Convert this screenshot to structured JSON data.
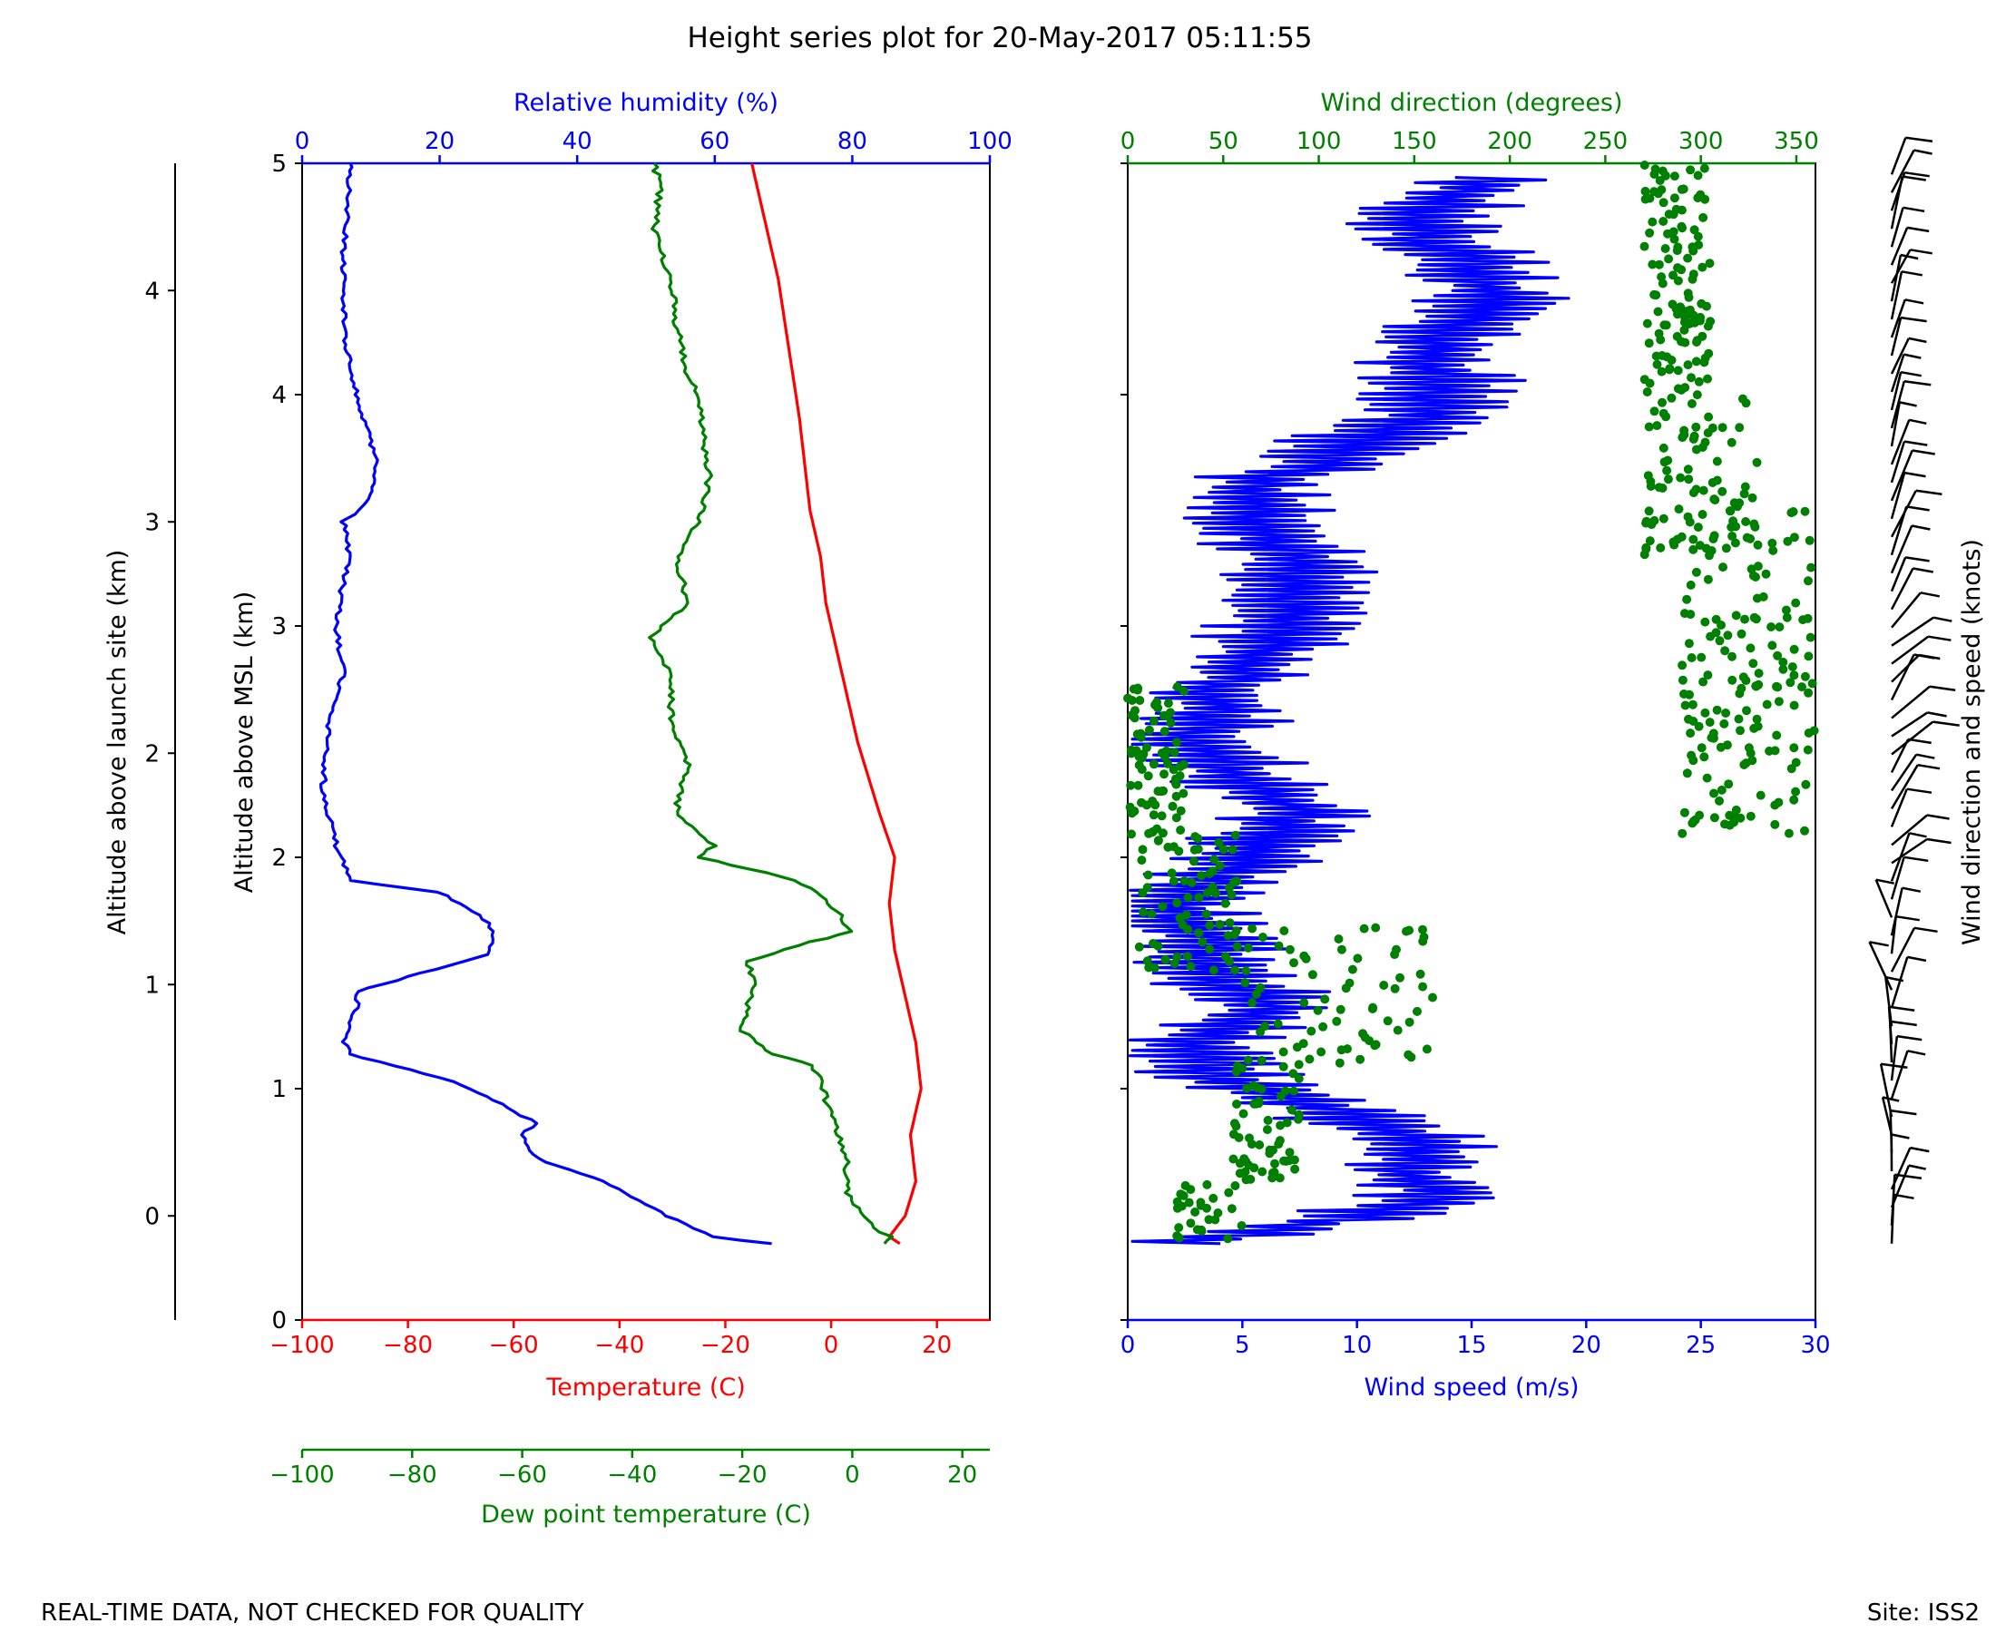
{
  "title": "Height series plot for 20-May-2017 05:11:55",
  "footer": {
    "left_note": "REAL-TIME DATA, NOT CHECKED FOR QUALITY",
    "site": "Site: ISS2"
  },
  "colors": {
    "temperature": "#ff0000",
    "humidity": "#0000ff",
    "dewpoint": "#008000",
    "wind_speed": "#0000ff",
    "wind_direction": "#008000",
    "barbs": "#000000",
    "axis": "#000000"
  },
  "chart_data": [
    {
      "type": "line",
      "panel": "thermo",
      "ylabel_msl": "Altitude above MSL (km)",
      "ylim_msl": [
        0,
        5
      ],
      "yticks_msl": [
        "0",
        "1",
        "2",
        "3",
        "4",
        "5"
      ],
      "ylabel_launch": "Altitude above launch site (km)",
      "ylim_launch": [
        -0.45,
        4.55
      ],
      "yticks_launch": [
        "0",
        "1",
        "2",
        "3",
        "4"
      ],
      "axes": {
        "temperature": {
          "label": "Temperature (C)",
          "range": [
            -100,
            30
          ],
          "ticks": [
            "−100",
            "−80",
            "−60",
            "−40",
            "−20",
            "0",
            "20"
          ]
        },
        "dewpoint": {
          "label": "Dew point temperature (C)",
          "range": [
            -100,
            25
          ],
          "ticks": [
            "−100",
            "−80",
            "−60",
            "−40",
            "−20",
            "0",
            "20"
          ]
        },
        "humidity": {
          "label": "Relative humidity (%)",
          "range": [
            0,
            100
          ],
          "ticks": [
            "0",
            "20",
            "40",
            "60",
            "80",
            "100"
          ]
        }
      },
      "series": [
        {
          "name": "Temperature",
          "axis": "temperature",
          "points": [
            [
              13,
              0.33
            ],
            [
              11,
              0.36
            ],
            [
              14,
              0.45
            ],
            [
              16,
              0.6
            ],
            [
              15,
              0.8
            ],
            [
              17,
              1.0
            ],
            [
              16,
              1.2
            ],
            [
              14,
              1.4
            ],
            [
              12,
              1.6
            ],
            [
              11,
              1.8
            ],
            [
              12,
              2.0
            ],
            [
              9,
              2.2
            ],
            [
              5,
              2.5
            ],
            [
              2,
              2.8
            ],
            [
              -1,
              3.1
            ],
            [
              -2,
              3.3
            ],
            [
              -4,
              3.5
            ],
            [
              -5,
              3.7
            ],
            [
              -6,
              3.9
            ],
            [
              -8,
              4.2
            ],
            [
              -10,
              4.5
            ],
            [
              -13,
              4.8
            ],
            [
              -15,
              5.0
            ]
          ]
        },
        {
          "name": "Dew point",
          "axis": "dewpoint",
          "points": [
            [
              6,
              0.33
            ],
            [
              7,
              0.36
            ],
            [
              4,
              0.4
            ],
            [
              -1,
              0.55
            ],
            [
              -1,
              0.7
            ],
            [
              -4,
              0.9
            ],
            [
              -7,
              1.1
            ],
            [
              -15,
              1.15
            ],
            [
              -20,
              1.25
            ],
            [
              -18,
              1.45
            ],
            [
              -19,
              1.55
            ],
            [
              -10,
              1.62
            ],
            [
              0,
              1.68
            ],
            [
              -4,
              1.8
            ],
            [
              -10,
              1.9
            ],
            [
              -28,
              2.0
            ],
            [
              -25,
              2.05
            ],
            [
              -32,
              2.2
            ],
            [
              -30,
              2.4
            ],
            [
              -33,
              2.6
            ],
            [
              -33,
              2.8
            ],
            [
              -37,
              2.95
            ],
            [
              -30,
              3.1
            ],
            [
              -32,
              3.3
            ],
            [
              -27,
              3.5
            ],
            [
              -26,
              3.65
            ],
            [
              -27,
              3.8
            ],
            [
              -28,
              4.0
            ],
            [
              -30,
              4.1
            ],
            [
              -32,
              4.3
            ],
            [
              -33,
              4.5
            ],
            [
              -36,
              4.7
            ],
            [
              -35,
              4.9
            ],
            [
              -36,
              5.0
            ]
          ]
        },
        {
          "name": "Relative humidity",
          "axis": "humidity",
          "points": [
            [
              68,
              0.33
            ],
            [
              60,
              0.36
            ],
            [
              53,
              0.45
            ],
            [
              44,
              0.6
            ],
            [
              34,
              0.7
            ],
            [
              32,
              0.8
            ],
            [
              34,
              0.85
            ],
            [
              28,
              0.95
            ],
            [
              22,
              1.03
            ],
            [
              7,
              1.15
            ],
            [
              6,
              1.22
            ],
            [
              8,
              1.35
            ],
            [
              8,
              1.42
            ],
            [
              27,
              1.58
            ],
            [
              28,
              1.68
            ],
            [
              26,
              1.75
            ],
            [
              20,
              1.85
            ],
            [
              7,
              1.9
            ],
            [
              5,
              2.05
            ],
            [
              3,
              2.3
            ],
            [
              4,
              2.6
            ],
            [
              6,
              2.8
            ],
            [
              5,
              3.0
            ],
            [
              6,
              3.2
            ],
            [
              7,
              3.3
            ],
            [
              6,
              3.45
            ],
            [
              10,
              3.55
            ],
            [
              11,
              3.7
            ],
            [
              9,
              3.9
            ],
            [
              7,
              4.1
            ],
            [
              6,
              4.3
            ],
            [
              6,
              4.6
            ],
            [
              7,
              5.0
            ]
          ]
        }
      ]
    },
    {
      "type": "scatter",
      "panel": "wind",
      "ylim_msl": [
        0,
        5
      ],
      "axes": {
        "wind_speed": {
          "label": "Wind speed (m/s)",
          "range": [
            0,
            30
          ],
          "ticks": [
            "0",
            "5",
            "10",
            "15",
            "20",
            "25",
            "30"
          ]
        },
        "wind_direction": {
          "label": "Wind direction (degrees)",
          "range": [
            0,
            360
          ],
          "ticks": [
            "0",
            "50",
            "100",
            "150",
            "200",
            "250",
            "300",
            "350"
          ]
        }
      },
      "series": [
        {
          "name": "Wind speed",
          "type": "line",
          "axis": "wind_speed",
          "points": [
            [
              1,
              0.33
            ],
            [
              4,
              0.36
            ],
            [
              10,
              0.45
            ],
            [
              14,
              0.55
            ],
            [
              12,
              0.65
            ],
            [
              13,
              0.75
            ],
            [
              11,
              0.85
            ],
            [
              7,
              0.95
            ],
            [
              4,
              1.05
            ],
            [
              3,
              1.2
            ],
            [
              6,
              1.35
            ],
            [
              4,
              1.5
            ],
            [
              3,
              1.65
            ],
            [
              2,
              1.8
            ],
            [
              4,
              1.95
            ],
            [
              6,
              2.05
            ],
            [
              7,
              2.2
            ],
            [
              5,
              2.35
            ],
            [
              3,
              2.5
            ],
            [
              4,
              2.7
            ],
            [
              6,
              2.9
            ],
            [
              8,
              3.1
            ],
            [
              7,
              3.3
            ],
            [
              6,
              3.5
            ],
            [
              5,
              3.6
            ],
            [
              8,
              3.7
            ],
            [
              10,
              3.8
            ],
            [
              13,
              3.9
            ],
            [
              14,
              4.05
            ],
            [
              13,
              4.15
            ],
            [
              14,
              4.25
            ],
            [
              15,
              4.35
            ],
            [
              16,
              4.45
            ],
            [
              15,
              4.55
            ],
            [
              14,
              4.65
            ],
            [
              13,
              4.75
            ],
            [
              14,
              4.85
            ],
            [
              16,
              4.95
            ]
          ]
        },
        {
          "name": "Wind direction",
          "type": "scatter",
          "axis": "wind_direction",
          "bands": [
            {
              "y": [
                0.35,
                0.6
              ],
              "dir": [
                25,
                60
              ]
            },
            {
              "y": [
                0.6,
                1.1
              ],
              "dir": [
                55,
                90
              ]
            },
            {
              "y": [
                1.1,
                1.7
              ],
              "dir": [
                60,
                160
              ]
            },
            {
              "y": [
                1.5,
                2.1
              ],
              "dir": [
                5,
                60
              ]
            },
            {
              "y": [
                2.1,
                2.75
              ],
              "dir": [
                0,
                30
              ]
            },
            {
              "y": [
                2.1,
                3.5
              ],
              "dir": [
                290,
                360
              ]
            },
            {
              "y": [
                3.3,
                4.0
              ],
              "dir": [
                270,
                330
              ]
            },
            {
              "y": [
                4.0,
                5.0
              ],
              "dir": [
                270,
                305
              ]
            }
          ]
        }
      ]
    },
    {
      "type": "barbs",
      "panel": "barbs",
      "ylabel": "Wind direction and speed (knots)"
    }
  ]
}
